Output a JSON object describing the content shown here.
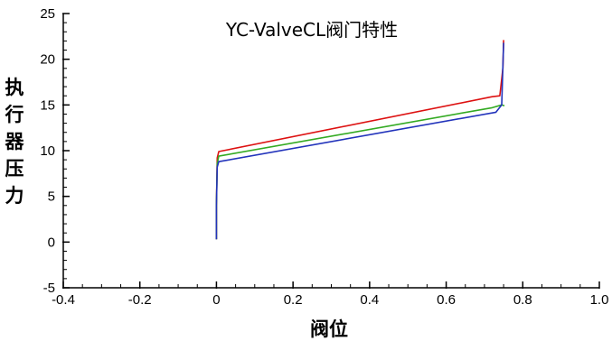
{
  "chart_data": {
    "type": "line",
    "title": "YC-ValveCL阀门特性",
    "xlabel": "阀位",
    "ylabel": "执行器压力",
    "xlim": [
      -0.4,
      1.0
    ],
    "ylim": [
      -5,
      25
    ],
    "xticks": [
      "-0.4",
      "-0.2",
      "0",
      "0.2",
      "0.4",
      "0.6",
      "0.8",
      "1.0"
    ],
    "yticks": [
      "-5",
      "0",
      "5",
      "10",
      "15",
      "20",
      "25"
    ],
    "grid": false,
    "legend": "none",
    "series": [
      {
        "color": "#dd1111",
        "points": [
          [
            0.0,
            0.3
          ],
          [
            0.0,
            4.0
          ],
          [
            0.002,
            9.2
          ],
          [
            0.006,
            9.9
          ],
          [
            0.72,
            15.9
          ],
          [
            0.74,
            16.0
          ],
          [
            0.748,
            19.0
          ],
          [
            0.75,
            22.1
          ]
        ]
      },
      {
        "color": "#33aa22",
        "points": [
          [
            0.0,
            0.3
          ],
          [
            0.0,
            4.0
          ],
          [
            0.002,
            8.6
          ],
          [
            0.006,
            9.4
          ],
          [
            0.72,
            14.7
          ],
          [
            0.745,
            15.0
          ],
          [
            0.752,
            14.9
          ]
        ]
      },
      {
        "color": "#2233bb",
        "points": [
          [
            0.0,
            0.3
          ],
          [
            0.0,
            4.0
          ],
          [
            0.002,
            8.2
          ],
          [
            0.006,
            8.8
          ],
          [
            0.73,
            14.2
          ],
          [
            0.745,
            15.0
          ],
          [
            0.75,
            21.8
          ]
        ]
      }
    ]
  }
}
